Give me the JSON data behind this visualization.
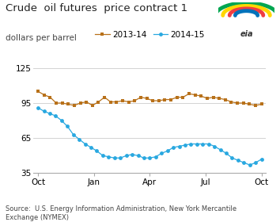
{
  "title": "Crude  oil futures  price contract 1",
  "subtitle": "dollars per barrel",
  "source_text": "Source:  U.S. Energy Information Administration, New York Mercantile\nExchange (NYMEX)",
  "ylim": [
    35,
    130
  ],
  "yticks": [
    35,
    65,
    95,
    125
  ],
  "xtick_labels": [
    "Oct",
    "Jan",
    "Apr",
    "Jul",
    "Oct"
  ],
  "legend_labels": [
    "2013-14",
    "2014-15"
  ],
  "color_2013": "#b8711a",
  "color_2014": "#29a8e0",
  "marker_2013": "s",
  "marker_2014": "o",
  "series_2013": [
    105,
    102,
    100,
    95,
    95,
    94,
    93,
    95,
    96,
    93,
    96,
    100,
    96,
    96,
    97,
    96,
    97,
    100,
    99,
    97,
    97,
    98,
    98,
    100,
    100,
    103,
    102,
    101,
    99,
    100,
    99,
    98,
    96,
    95,
    95,
    94,
    93,
    94
  ],
  "series_2014": [
    91,
    88,
    86,
    84,
    80,
    75,
    68,
    64,
    60,
    57,
    54,
    50,
    49,
    48,
    48,
    50,
    51,
    50,
    48,
    48,
    49,
    52,
    54,
    57,
    58,
    59,
    60,
    60,
    60,
    60,
    58,
    55,
    52,
    48,
    46,
    44,
    42,
    44,
    47
  ],
  "background_color": "#ffffff",
  "grid_color": "#cccccc",
  "title_fontsize": 9.5,
  "subtitle_fontsize": 7.5,
  "source_fontsize": 6.0,
  "tick_fontsize": 7.5,
  "legend_fontsize": 7.5
}
